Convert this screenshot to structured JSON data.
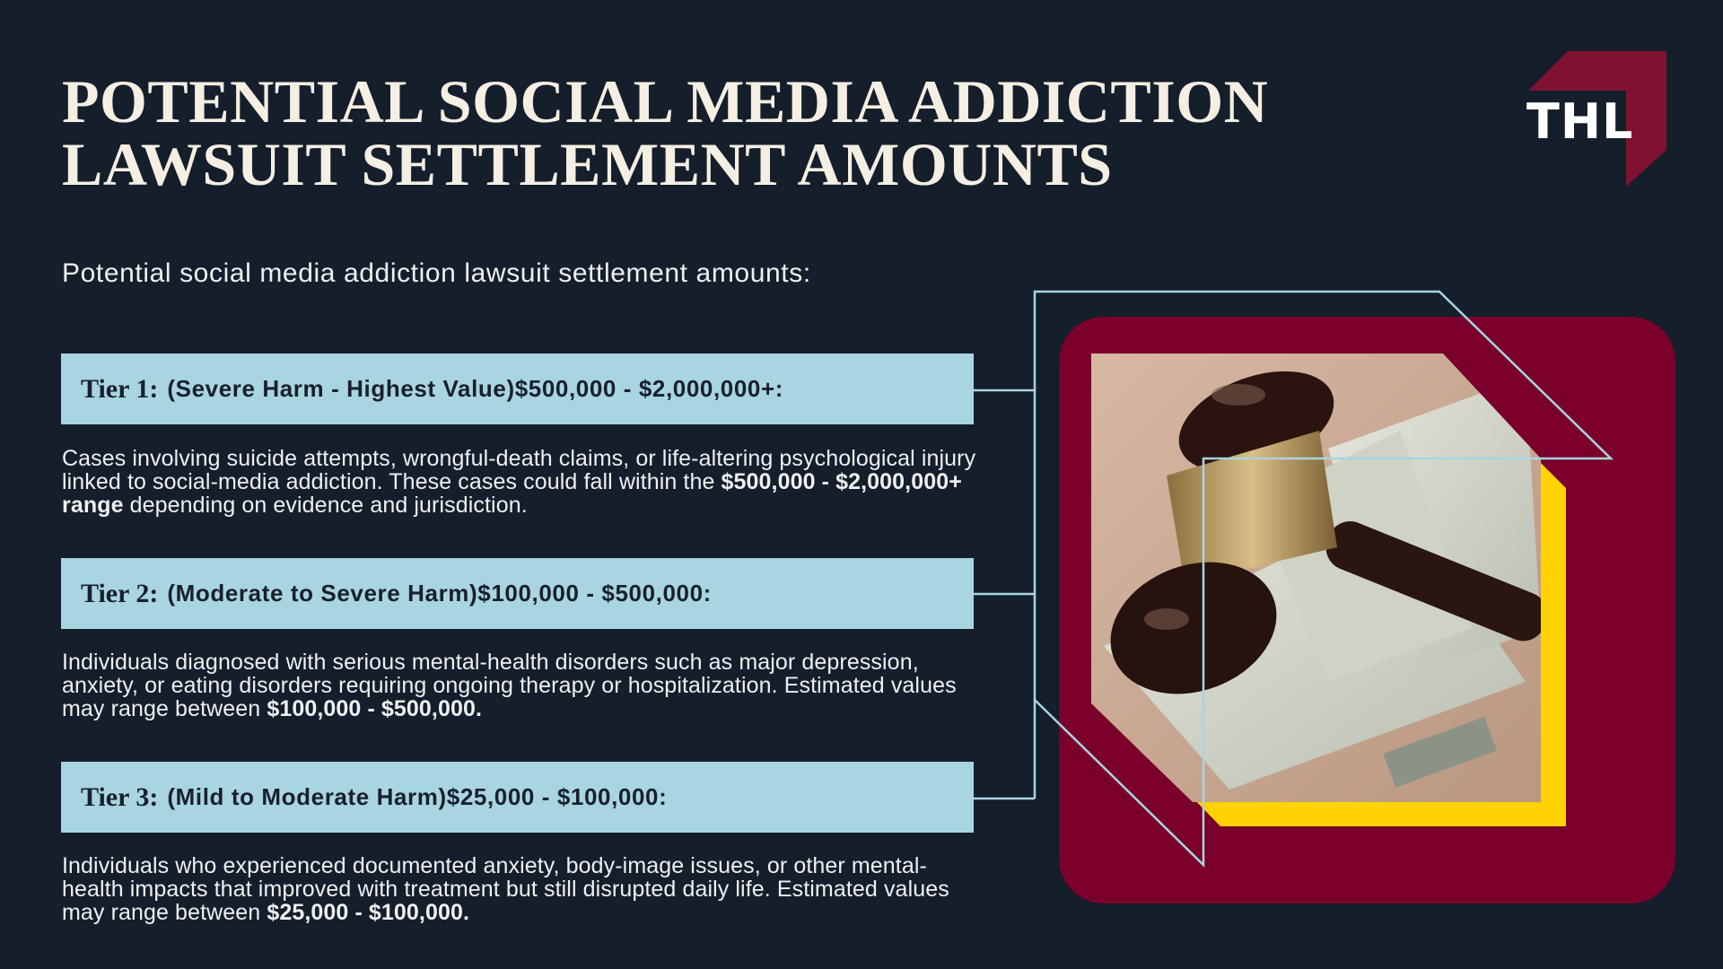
{
  "title": {
    "line1": "POTENTIAL SOCIAL MEDIA ADDICTION",
    "line2": "LAWSUIT SETTLEMENT AMOUNTS"
  },
  "logo": {
    "text": "THL",
    "color": "#7f1230"
  },
  "subtitle": "Potential social media addiction lawsuit settlement amounts:",
  "tiers": [
    {
      "name": "Tier 1:",
      "heading": "(Severe Harm - Highest Value)$500,000 - $2,000,000+:",
      "desc_before": "Cases involving suicide attempts, wrongful-death claims, or life-altering psychological injury linked to social-media addiction. These cases could fall within the ",
      "desc_bold": "$500,000 - $2,000,000+ range",
      "desc_after": " depending on evidence and jurisdiction."
    },
    {
      "name": "Tier 2:",
      "heading": "(Moderate to Severe Harm)$100,000 - $500,000:",
      "desc_before": "Individuals diagnosed with serious mental-health disorders such as major depression, anxiety, or eating disorders requiring ongoing therapy or hospitalization. Estimated values may range between ",
      "desc_bold": "$100,000 - $500,000.",
      "desc_after": ""
    },
    {
      "name": "Tier 3:",
      "heading": "(Mild to Moderate Harm)$25,000 - $100,000:",
      "desc_before": "Individuals who experienced documented anxiety, body-image issues, or other mental-health impacts that improved with treatment but still disrupted daily life. Estimated values may range between ",
      "desc_bold": "$25,000 - $100,000.",
      "desc_after": ""
    }
  ],
  "colors": {
    "background": "#151e2b",
    "tier_box": "#a8d5e0",
    "accent_maroon": "#7a002b",
    "accent_yellow": "#ffd200",
    "line": "#a8d5e0"
  },
  "image": {
    "subject": "gavel-on-money-photo"
  }
}
